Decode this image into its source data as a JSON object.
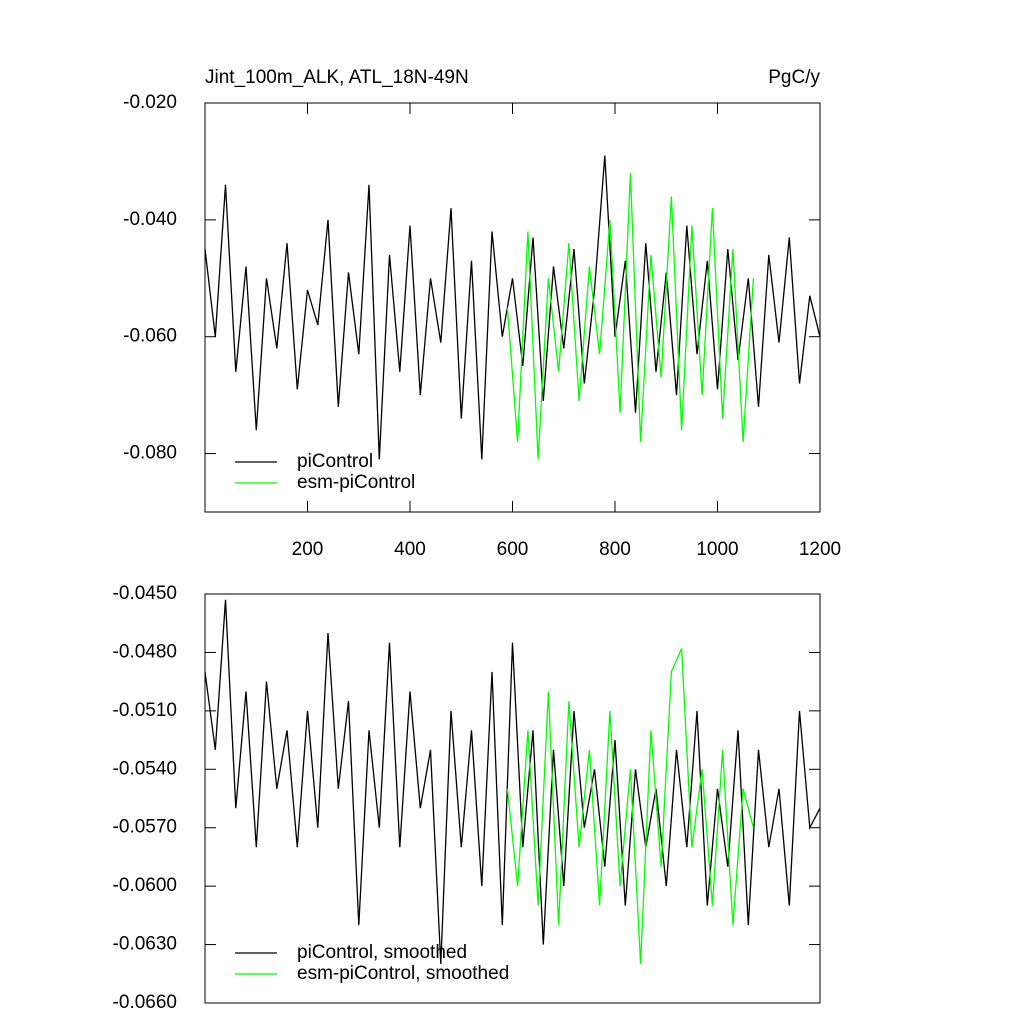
{
  "chart_data": [
    {
      "type": "line",
      "title": "Jint_100m_ALK, ATL_18N-49N",
      "unit_label": "PgC/y",
      "xlim": [
        0,
        1200
      ],
      "xticks": [
        200,
        400,
        600,
        800,
        1000,
        1200
      ],
      "ylim": [
        -0.09,
        -0.02
      ],
      "yticks": [
        {
          "value": -0.02,
          "label": "-0.020"
        },
        {
          "value": -0.04,
          "label": "-0.040"
        },
        {
          "value": -0.06,
          "label": "-0.060"
        },
        {
          "value": -0.08,
          "label": "-0.080"
        }
      ],
      "legend": "lower-left",
      "series": [
        {
          "name": "piControl",
          "color": "#000000",
          "x": [
            0,
            20,
            40,
            60,
            80,
            100,
            120,
            140,
            160,
            180,
            200,
            220,
            240,
            260,
            280,
            300,
            320,
            340,
            360,
            380,
            400,
            420,
            440,
            460,
            480,
            500,
            520,
            540,
            560,
            580,
            600,
            620,
            640,
            660,
            680,
            700,
            720,
            740,
            760,
            780,
            800,
            820,
            840,
            860,
            880,
            900,
            920,
            940,
            960,
            980,
            1000,
            1020,
            1040,
            1060,
            1080,
            1100,
            1120,
            1140,
            1160,
            1180,
            1200
          ],
          "values": [
            -0.045,
            -0.06,
            -0.034,
            -0.066,
            -0.048,
            -0.076,
            -0.05,
            -0.062,
            -0.044,
            -0.069,
            -0.052,
            -0.058,
            -0.04,
            -0.072,
            -0.049,
            -0.063,
            -0.034,
            -0.081,
            -0.046,
            -0.066,
            -0.041,
            -0.07,
            -0.05,
            -0.061,
            -0.038,
            -0.074,
            -0.047,
            -0.081,
            -0.042,
            -0.06,
            -0.05,
            -0.065,
            -0.043,
            -0.071,
            -0.048,
            -0.062,
            -0.045,
            -0.068,
            -0.052,
            -0.029,
            -0.06,
            -0.047,
            -0.073,
            -0.044,
            -0.066,
            -0.049,
            -0.07,
            -0.041,
            -0.063,
            -0.047,
            -0.069,
            -0.045,
            -0.064,
            -0.05,
            -0.072,
            -0.046,
            -0.061,
            -0.043,
            -0.068,
            -0.053,
            -0.06
          ]
        },
        {
          "name": "esm-piControl",
          "color": "#00ff00",
          "x": [
            590,
            610,
            630,
            650,
            670,
            690,
            710,
            730,
            750,
            770,
            790,
            810,
            830,
            850,
            870,
            890,
            910,
            930,
            950,
            970,
            990,
            1010,
            1030,
            1050,
            1070
          ],
          "values": [
            -0.055,
            -0.078,
            -0.042,
            -0.081,
            -0.05,
            -0.066,
            -0.044,
            -0.071,
            -0.048,
            -0.063,
            -0.04,
            -0.073,
            -0.032,
            -0.078,
            -0.046,
            -0.067,
            -0.036,
            -0.076,
            -0.041,
            -0.07,
            -0.038,
            -0.074,
            -0.045,
            -0.078,
            -0.05
          ]
        }
      ]
    },
    {
      "type": "line",
      "xlim": [
        0,
        1200
      ],
      "ylim": [
        -0.066,
        -0.045
      ],
      "yticks": [
        {
          "value": -0.045,
          "label": "-0.0450"
        },
        {
          "value": -0.048,
          "label": "-0.0480"
        },
        {
          "value": -0.051,
          "label": "-0.0510"
        },
        {
          "value": -0.054,
          "label": "-0.0540"
        },
        {
          "value": -0.057,
          "label": "-0.0570"
        },
        {
          "value": -0.06,
          "label": "-0.0600"
        },
        {
          "value": -0.063,
          "label": "-0.0630"
        },
        {
          "value": -0.066,
          "label": "-0.0660"
        }
      ],
      "legend": "lower-left",
      "series": [
        {
          "name": "piControl, smoothed",
          "color": "#000000",
          "x": [
            0,
            20,
            40,
            60,
            80,
            100,
            120,
            140,
            160,
            180,
            200,
            220,
            240,
            260,
            280,
            300,
            320,
            340,
            360,
            380,
            400,
            420,
            440,
            460,
            480,
            500,
            520,
            540,
            560,
            580,
            600,
            620,
            640,
            660,
            680,
            700,
            720,
            740,
            760,
            780,
            800,
            820,
            840,
            860,
            880,
            900,
            920,
            940,
            960,
            980,
            1000,
            1020,
            1040,
            1060,
            1080,
            1100,
            1120,
            1140,
            1160,
            1180,
            1200
          ],
          "values": [
            -0.049,
            -0.053,
            -0.0453,
            -0.056,
            -0.05,
            -0.058,
            -0.0495,
            -0.055,
            -0.052,
            -0.058,
            -0.051,
            -0.057,
            -0.047,
            -0.055,
            -0.0505,
            -0.062,
            -0.052,
            -0.057,
            -0.0475,
            -0.058,
            -0.05,
            -0.056,
            -0.053,
            -0.064,
            -0.051,
            -0.058,
            -0.052,
            -0.06,
            -0.049,
            -0.062,
            -0.0475,
            -0.058,
            -0.052,
            -0.063,
            -0.053,
            -0.06,
            -0.051,
            -0.057,
            -0.054,
            -0.059,
            -0.0525,
            -0.061,
            -0.054,
            -0.058,
            -0.055,
            -0.06,
            -0.053,
            -0.058,
            -0.051,
            -0.061,
            -0.055,
            -0.059,
            -0.052,
            -0.062,
            -0.053,
            -0.058,
            -0.055,
            -0.061,
            -0.051,
            -0.057,
            -0.056
          ]
        },
        {
          "name": "esm-piControl, smoothed",
          "color": "#00ff00",
          "x": [
            590,
            610,
            630,
            650,
            670,
            690,
            710,
            730,
            750,
            770,
            790,
            810,
            830,
            850,
            870,
            890,
            910,
            930,
            950,
            970,
            990,
            1010,
            1030,
            1050,
            1070
          ],
          "values": [
            -0.055,
            -0.06,
            -0.052,
            -0.061,
            -0.05,
            -0.062,
            -0.0505,
            -0.058,
            -0.053,
            -0.061,
            -0.051,
            -0.06,
            -0.054,
            -0.064,
            -0.052,
            -0.059,
            -0.049,
            -0.0478,
            -0.058,
            -0.054,
            -0.061,
            -0.053,
            -0.062,
            -0.055,
            -0.057
          ]
        }
      ]
    }
  ]
}
